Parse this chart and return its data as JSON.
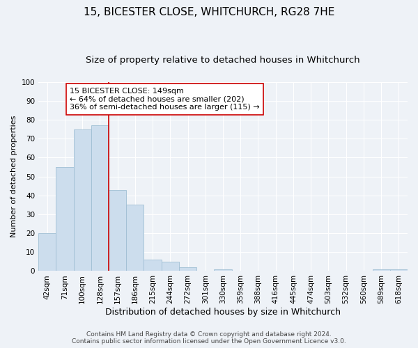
{
  "title": "15, BICESTER CLOSE, WHITCHURCH, RG28 7HE",
  "subtitle": "Size of property relative to detached houses in Whitchurch",
  "xlabel": "Distribution of detached houses by size in Whitchurch",
  "ylabel": "Number of detached properties",
  "bar_labels": [
    "42sqm",
    "71sqm",
    "100sqm",
    "128sqm",
    "157sqm",
    "186sqm",
    "215sqm",
    "244sqm",
    "272sqm",
    "301sqm",
    "330sqm",
    "359sqm",
    "388sqm",
    "416sqm",
    "445sqm",
    "474sqm",
    "503sqm",
    "532sqm",
    "560sqm",
    "589sqm",
    "618sqm"
  ],
  "bar_values": [
    20,
    55,
    75,
    77,
    43,
    35,
    6,
    5,
    2,
    0,
    1,
    0,
    0,
    0,
    0,
    0,
    0,
    0,
    0,
    1,
    1
  ],
  "bar_color": "#ccdded",
  "bar_edge_color": "#a0bfd4",
  "vline_color": "#cc0000",
  "annotation_box_text": "15 BICESTER CLOSE: 149sqm\n← 64% of detached houses are smaller (202)\n36% of semi-detached houses are larger (115) →",
  "annotation_box_color": "#cc0000",
  "ylim": [
    0,
    100
  ],
  "yticks": [
    0,
    10,
    20,
    30,
    40,
    50,
    60,
    70,
    80,
    90,
    100
  ],
  "background_color": "#eef2f7",
  "plot_background": "#eef2f7",
  "footer_line1": "Contains HM Land Registry data © Crown copyright and database right 2024.",
  "footer_line2": "Contains public sector information licensed under the Open Government Licence v3.0.",
  "title_fontsize": 11,
  "subtitle_fontsize": 9.5,
  "xlabel_fontsize": 9,
  "ylabel_fontsize": 8,
  "tick_fontsize": 7.5,
  "footer_fontsize": 6.5,
  "annotation_fontsize": 8
}
